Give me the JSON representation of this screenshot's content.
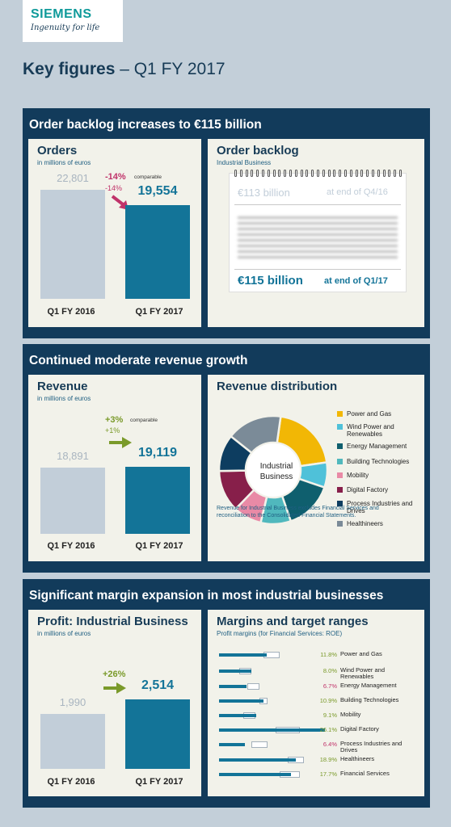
{
  "header": {
    "brand": "SIEMENS",
    "tagline": "Ingenuity for life",
    "title_bold": "Key figures",
    "title_rest": " – Q1 FY 2017"
  },
  "sections": [
    {
      "title": "Order backlog increases to €115 billion"
    },
    {
      "title": "Continued moderate revenue growth"
    },
    {
      "title": "Significant margin expansion in most industrial businesses"
    }
  ],
  "colors": {
    "navy": "#123b5b",
    "teal": "#137498",
    "pale": "#c2ced9",
    "down": "#c0336a",
    "up": "#7a9a2a"
  },
  "orders": {
    "title": "Orders",
    "subtitle": "in millions of euros",
    "change": "-14%",
    "change_comparable_label": "comparable",
    "change2": "-14%",
    "direction": "down",
    "chart_data": {
      "type": "bar",
      "categories": [
        "Q1 FY 2016",
        "Q1 FY 2017"
      ],
      "values": [
        22801,
        19554
      ],
      "value_labels": [
        "22,801",
        "19,554"
      ]
    }
  },
  "backlog": {
    "title": "Order backlog",
    "subtitle": "Industrial Business",
    "prev_value": "€113 billion",
    "prev_label": "at end of Q4/16",
    "cur_value": "€115 billion",
    "cur_label": "at end of Q1/17"
  },
  "revenue": {
    "title": "Revenue",
    "subtitle": "in millions of euros",
    "change": "+3%",
    "change_comparable_label": "comparable",
    "change2": "+1%",
    "direction": "up",
    "chart_data": {
      "type": "bar",
      "categories": [
        "Q1 FY 2016",
        "Q1 FY 2017"
      ],
      "values": [
        18891,
        19119
      ],
      "value_labels": [
        "18,891",
        "19,119"
      ]
    }
  },
  "revenue_distribution": {
    "title": "Revenue distribution",
    "center_label": "Industrial Business",
    "note": "Revenue for Industrial Business excludes Financial Services and reconciliation to the Consolidated Financial Statements.",
    "chart_data": {
      "type": "pie",
      "labels": [
        "Power and Gas",
        "Wind Power and Renewables",
        "Energy Management",
        "Building Technologies",
        "Mobility",
        "Digital Factory",
        "Process Industries and Drives",
        "Healthineers"
      ],
      "values": [
        20.5,
        7.5,
        14.5,
        9,
        8.5,
        12.5,
        11,
        16.5
      ],
      "colors": [
        "#f2b705",
        "#4fc1d9",
        "#0f5f6e",
        "#50b8bd",
        "#e98aa6",
        "#871f4a",
        "#0d3d60",
        "#7b8b98"
      ]
    }
  },
  "profit": {
    "title": "Profit: Industrial Business",
    "subtitle": "in millions of euros",
    "change": "+26%",
    "direction": "up",
    "chart_data": {
      "type": "bar",
      "categories": [
        "Q1 FY 2016",
        "Q1 FY 2017"
      ],
      "values": [
        1990,
        2514
      ],
      "value_labels": [
        "1,990",
        "2,514"
      ]
    }
  },
  "margins": {
    "title": "Margins and target ranges",
    "subtitle": "Profit margins (for Financial Services: ROE)",
    "chart_data": {
      "type": "bar",
      "orientation": "horizontal",
      "categories": [
        "Power and Gas",
        "Wind Power and Renewables",
        "Energy Management",
        "Building Technologies",
        "Mobility",
        "Digital Factory",
        "Process Industries and Drives",
        "Healthineers",
        "Financial Services"
      ],
      "values": [
        11.8,
        8.0,
        6.7,
        10.9,
        9.1,
        26.1,
        6.4,
        18.9,
        17.7
      ],
      "value_labels": [
        "11.8%",
        "8.0%",
        "6.7%",
        "10.9%",
        "9.1%",
        "26.1%",
        "6.4%",
        "18.9%",
        "17.7%"
      ],
      "target_ranges": [
        [
          11,
          15
        ],
        [
          5,
          8
        ],
        [
          7,
          10
        ],
        [
          10,
          12
        ],
        [
          6,
          9
        ],
        [
          14,
          20
        ],
        [
          8,
          12
        ],
        [
          17,
          21
        ],
        [
          15,
          20
        ]
      ],
      "value_colors": [
        "#7a9a2a",
        "#7a9a2a",
        "#c0336a",
        "#7a9a2a",
        "#7a9a2a",
        "#7a9a2a",
        "#c0336a",
        "#7a9a2a",
        "#7a9a2a"
      ]
    }
  }
}
